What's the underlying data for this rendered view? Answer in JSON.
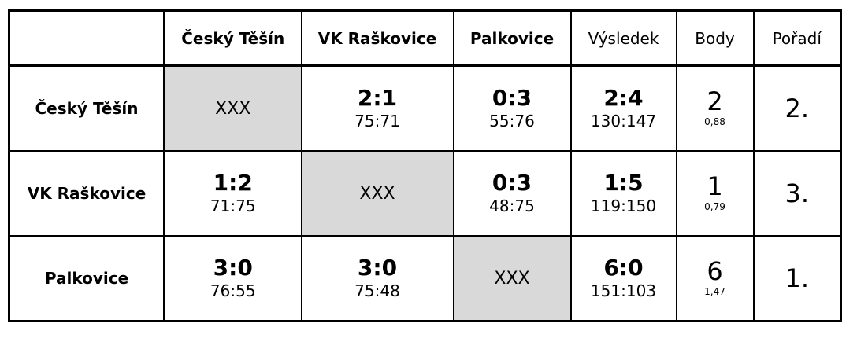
{
  "header": {
    "corner": "",
    "teams": [
      "Český Těšín",
      "VK Raškovice",
      "Palkovice"
    ],
    "result": "Výsledek",
    "points": "Body",
    "rank": "Pořadí"
  },
  "self_marker": "XXX",
  "rows": [
    {
      "team": "Český Těšín",
      "matches": [
        null,
        {
          "sets": "2:1",
          "points": "75:71"
        },
        {
          "sets": "0:3",
          "points": "55:76"
        }
      ],
      "result": {
        "sets": "2:4",
        "points": "130:147"
      },
      "body": {
        "value": "2",
        "ratio": "0,88"
      },
      "rank": "2."
    },
    {
      "team": "VK Raškovice",
      "matches": [
        {
          "sets": "1:2",
          "points": "71:75"
        },
        null,
        {
          "sets": "0:3",
          "points": "48:75"
        }
      ],
      "result": {
        "sets": "1:5",
        "points": "119:150"
      },
      "body": {
        "value": "1",
        "ratio": "0,79"
      },
      "rank": "3."
    },
    {
      "team": "Palkovice",
      "matches": [
        {
          "sets": "3:0",
          "points": "76:55"
        },
        {
          "sets": "3:0",
          "points": "75:48"
        },
        null
      ],
      "result": {
        "sets": "6:0",
        "points": "151:103"
      },
      "body": {
        "value": "6",
        "ratio": "1,47"
      },
      "rank": "1."
    }
  ],
  "colors": {
    "self_cell": "#d9d9d9",
    "border": "#000000"
  }
}
